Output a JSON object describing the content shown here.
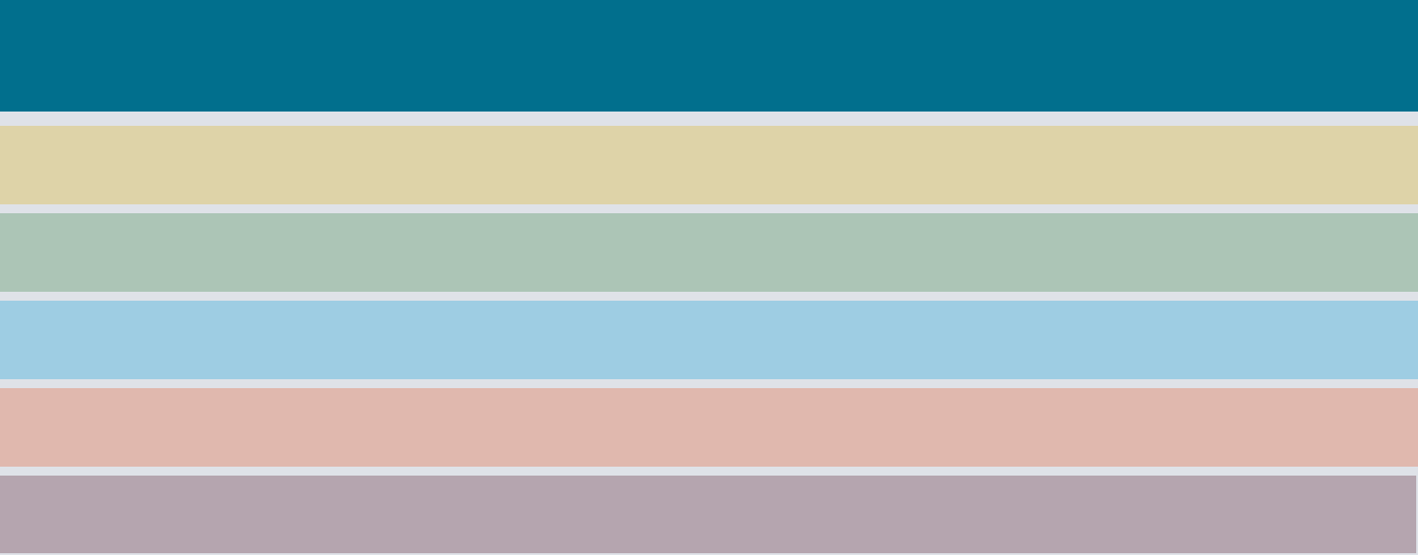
{
  "palette": {
    "background": "#dfe2e8",
    "bands": [
      "#016f8d",
      "#ded3a8",
      "#acc5b6",
      "#9ecde3",
      "#e0b8ae",
      "#b5a5af"
    ]
  }
}
